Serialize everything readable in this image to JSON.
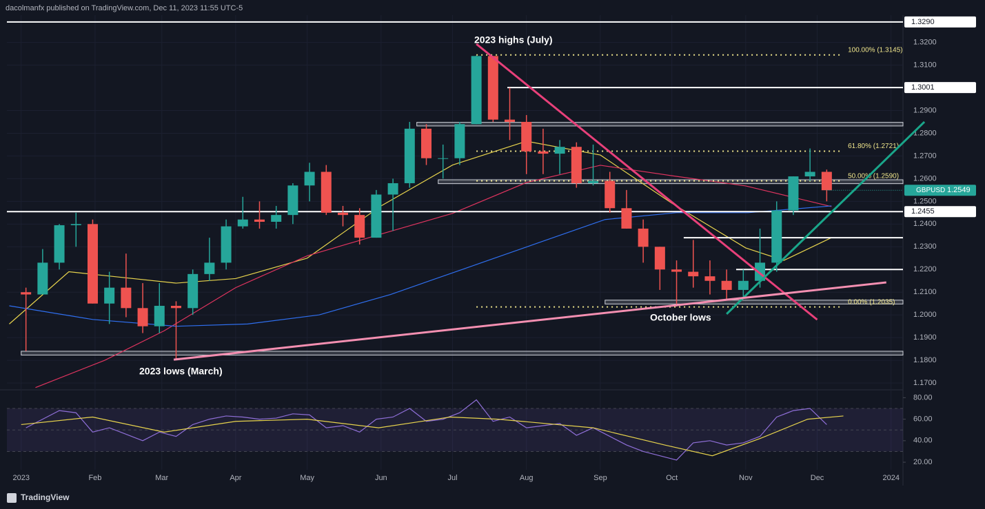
{
  "header": "dacolmanfx published on TradingView.com, Dec 11, 2023 11:55 UTC-5",
  "footer": "TradingView",
  "chart_data": {
    "type": "candlestick",
    "symbol": "GBPUSD",
    "up_color": "#26a69a",
    "down_color": "#ef5350",
    "xlim": [
      -6,
      370
    ],
    "ylim": [
      1.167,
      1.332
    ],
    "xticks": [
      {
        "value": 0,
        "label": "2023"
      },
      {
        "value": 31,
        "label": "Feb"
      },
      {
        "value": 59,
        "label": "Mar"
      },
      {
        "value": 90,
        "label": "Apr"
      },
      {
        "value": 120,
        "label": "May"
      },
      {
        "value": 151,
        "label": "Jun"
      },
      {
        "value": 181,
        "label": "Jul"
      },
      {
        "value": 212,
        "label": "Aug"
      },
      {
        "value": 243,
        "label": "Sep"
      },
      {
        "value": 273,
        "label": "Oct"
      },
      {
        "value": 304,
        "label": "Nov"
      },
      {
        "value": 334,
        "label": "Dec"
      },
      {
        "value": 365,
        "label": "2024"
      }
    ],
    "yticks": [
      {
        "value": 1.32,
        "label": "1.3200"
      },
      {
        "value": 1.31,
        "label": "1.3100"
      },
      {
        "value": 1.29,
        "label": "1.2900"
      },
      {
        "value": 1.28,
        "label": "1.2800"
      },
      {
        "value": 1.27,
        "label": "1.2700"
      },
      {
        "value": 1.26,
        "label": "1.2600"
      },
      {
        "value": 1.25,
        "label": "1.2500"
      },
      {
        "value": 1.24,
        "label": "1.2400"
      },
      {
        "value": 1.23,
        "label": "1.2300"
      },
      {
        "value": 1.22,
        "label": "1.2200"
      },
      {
        "value": 1.21,
        "label": "1.2100"
      },
      {
        "value": 1.2,
        "label": "1.2000"
      },
      {
        "value": 1.19,
        "label": "1.1900"
      },
      {
        "value": 1.18,
        "label": "1.1800"
      },
      {
        "value": 1.17,
        "label": "1.1700"
      }
    ],
    "x": [
      2,
      9,
      16,
      23,
      30,
      37,
      44,
      51,
      58,
      65,
      72,
      79,
      86,
      93,
      100,
      107,
      114,
      121,
      128,
      135,
      142,
      149,
      156,
      163,
      170,
      177,
      184,
      191,
      198,
      205,
      212,
      219,
      226,
      233,
      240,
      247,
      254,
      261,
      268,
      275,
      282,
      289,
      296,
      303,
      310,
      317,
      324,
      331,
      338
    ],
    "open": [
      1.21,
      1.209,
      1.223,
      1.2395,
      1.24,
      1.205,
      1.212,
      1.203,
      1.195,
      1.204,
      1.203,
      1.218,
      1.223,
      1.239,
      1.242,
      1.241,
      1.244,
      1.257,
      1.263,
      1.245,
      1.244,
      1.234,
      1.253,
      1.258,
      1.282,
      1.269,
      1.269,
      1.284,
      1.314,
      1.286,
      1.285,
      1.272,
      1.271,
      1.274,
      1.258,
      1.259,
      1.247,
      1.238,
      1.23,
      1.22,
      1.219,
      1.217,
      1.215,
      1.211,
      1.215,
      1.223,
      1.246,
      1.261,
      1.263
    ],
    "high": [
      1.212,
      1.229,
      1.24,
      1.245,
      1.242,
      1.219,
      1.227,
      1.214,
      1.214,
      1.206,
      1.22,
      1.234,
      1.242,
      1.252,
      1.25,
      1.248,
      1.258,
      1.267,
      1.266,
      1.248,
      1.247,
      1.255,
      1.26,
      1.285,
      1.284,
      1.275,
      1.285,
      1.3142,
      1.314,
      1.3,
      1.288,
      1.282,
      1.277,
      1.276,
      1.275,
      1.263,
      1.255,
      1.242,
      1.23,
      1.224,
      1.233,
      1.224,
      1.22,
      1.22,
      1.238,
      1.25,
      1.261,
      1.2733,
      1.264
    ],
    "low": [
      1.1841,
      1.21,
      1.22,
      1.23,
      1.205,
      1.196,
      1.199,
      1.192,
      1.192,
      1.1803,
      1.2,
      1.215,
      1.22,
      1.238,
      1.238,
      1.238,
      1.24,
      1.25,
      1.244,
      1.239,
      1.231,
      1.234,
      1.237,
      1.256,
      1.266,
      1.26,
      1.266,
      1.284,
      1.285,
      1.277,
      1.262,
      1.262,
      1.262,
      1.256,
      1.257,
      1.245,
      1.238,
      1.223,
      1.211,
      1.2037,
      1.212,
      1.209,
      1.207,
      1.208,
      1.212,
      1.219,
      1.244,
      1.259,
      1.25
    ],
    "close": [
      1.209,
      1.223,
      1.2395,
      1.24,
      1.205,
      1.212,
      1.203,
      1.195,
      1.204,
      1.203,
      1.218,
      1.223,
      1.239,
      1.242,
      1.241,
      1.244,
      1.257,
      1.263,
      1.245,
      1.244,
      1.234,
      1.253,
      1.258,
      1.282,
      1.269,
      1.269,
      1.284,
      1.314,
      1.286,
      1.285,
      1.272,
      1.271,
      1.274,
      1.258,
      1.259,
      1.247,
      1.238,
      1.23,
      1.22,
      1.219,
      1.217,
      1.215,
      1.211,
      1.215,
      1.223,
      1.246,
      1.261,
      1.263,
      1.2549
    ],
    "last_label": "1.2549",
    "moving_averages": [
      {
        "color": "#e8d44d",
        "x": [
          -5,
          20,
          65,
          90,
          120,
          151,
          181,
          212,
          243,
          273,
          304,
          320,
          340
        ],
        "values": [
          1.196,
          1.219,
          1.214,
          1.216,
          1.225,
          1.248,
          1.266,
          1.2765,
          1.2704,
          1.2492,
          1.2295,
          1.224,
          1.234
        ]
      },
      {
        "color": "#e0345f",
        "x": [
          6,
          35,
          60,
          90,
          120,
          151,
          181,
          212,
          243,
          273,
          304,
          340
        ],
        "values": [
          1.168,
          1.18,
          1.193,
          1.212,
          1.226,
          1.2356,
          1.2447,
          1.2583,
          1.2659,
          1.2613,
          1.2568,
          1.2477
        ]
      },
      {
        "color": "#2f6ff0",
        "x": [
          -5,
          30,
          65,
          95,
          125,
          155,
          185,
          215,
          245,
          275,
          305,
          340
        ],
        "values": [
          1.204,
          1.198,
          1.195,
          1.196,
          1.2,
          1.209,
          1.22,
          1.231,
          1.242,
          1.245,
          1.245,
          1.248
        ]
      }
    ],
    "levels": [
      {
        "value": 1.329,
        "value_label": "1.3290",
        "x_start": -6
      },
      {
        "value": 1.3001,
        "value_label": "1.3001",
        "x_start": 204
      },
      {
        "value": 1.2455,
        "value_label": "1.2455",
        "x_start": -6
      },
      {
        "value": 1.234,
        "x_start": 278
      },
      {
        "value": 1.22,
        "x_start": 300
      }
    ],
    "zones": [
      {
        "low": 1.2832,
        "high": 1.2848,
        "x_start": 166
      },
      {
        "low": 1.2578,
        "high": 1.2595,
        "x_start": 175
      },
      {
        "low": 1.2048,
        "high": 1.2065,
        "x_start": 245
      },
      {
        "low": 1.1823,
        "high": 1.184,
        "x_start": 0
      }
    ],
    "fib_levels": [
      {
        "value": 1.3145,
        "label": "100.00% (1.3145)"
      },
      {
        "value": 1.2721,
        "label": "61.80% (1.2721)"
      },
      {
        "value": 1.259,
        "label": "50.00% (1.2590)"
      },
      {
        "value": 1.2035,
        "label": "0.00% (1.2035)"
      }
    ],
    "fib_x": [
      191,
      344
    ],
    "trendlines": [
      {
        "color": "#e8407a",
        "x": [
          191,
          334
        ],
        "values": [
          1.3193,
          1.1979
        ]
      },
      {
        "color": "#1aa68a",
        "x": [
          296,
          379
        ],
        "values": [
          1.2004,
          1.285
        ]
      },
      {
        "color": "#f48fb1",
        "x": [
          64,
          363
        ],
        "values": [
          1.1803,
          1.2143
        ]
      }
    ],
    "annotations": [
      "2023 highs (July)",
      "2023 lows (March)",
      "October lows"
    ],
    "rsi": {
      "color": "#8f6fd8",
      "signal_color": "#e8d44d",
      "ylim": [
        13,
        86
      ],
      "band": [
        30,
        70
      ],
      "midline": 50,
      "yticks": [
        {
          "value": 80,
          "label": "80.00"
        },
        {
          "value": 60,
          "label": "60.00"
        },
        {
          "value": 40,
          "label": "40.00"
        },
        {
          "value": 20,
          "label": "20.00"
        }
      ],
      "values": [
        52,
        60,
        68,
        66,
        48,
        52,
        46,
        40,
        48,
        44,
        55,
        60,
        63,
        62,
        60,
        61,
        65,
        64,
        52,
        54,
        48,
        60,
        62,
        70,
        58,
        60,
        66,
        78,
        58,
        62,
        52,
        54,
        56,
        45,
        52,
        44,
        36,
        30,
        26,
        22,
        38,
        40,
        36,
        38,
        44,
        62,
        68,
        70,
        55
      ],
      "signal_x": [
        0,
        30,
        60,
        90,
        120,
        150,
        180,
        200,
        240,
        270,
        290,
        310,
        330,
        345
      ],
      "signal": [
        55,
        62,
        48,
        58,
        60,
        52,
        62,
        60,
        52,
        36,
        26,
        42,
        60,
        63
      ]
    }
  }
}
